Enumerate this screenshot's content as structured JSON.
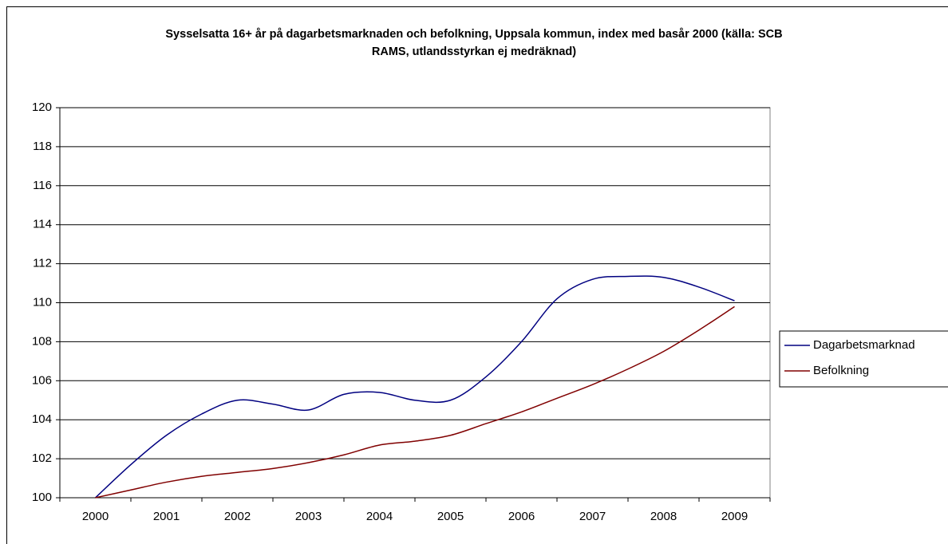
{
  "chart_data": {
    "type": "line",
    "title": "Sysselsatta 16+ år på dagarbetsmarknaden och befolkning, Uppsala kommun, index med basår 2000 (källa: SCB RAMS, utlandsstyrkan ej medräknad)",
    "categories": [
      "2000",
      null,
      "2001",
      null,
      "2002",
      null,
      "2003",
      null,
      "2004",
      null,
      "2005",
      null,
      "2006",
      null,
      "2007",
      null,
      "2008",
      null,
      "2009"
    ],
    "series": [
      {
        "name": "Dagarbetsmarknad",
        "color": "#000080",
        "values": [
          100,
          101.7,
          103.2,
          104.3,
          105.0,
          104.8,
          104.5,
          105.3,
          105.4,
          105.0,
          105.0,
          106.2,
          108.0,
          110.2,
          111.2,
          111.35,
          111.3,
          110.8,
          110.1
        ]
      },
      {
        "name": "Befolkning",
        "color": "#800000",
        "values": [
          100,
          100.4,
          100.8,
          101.1,
          101.3,
          101.5,
          101.8,
          102.2,
          102.7,
          102.9,
          103.2,
          103.8,
          104.4,
          105.1,
          105.8,
          106.6,
          107.5,
          108.6,
          109.8
        ]
      }
    ],
    "ylim": [
      100,
      120
    ],
    "yticks": [
      100,
      102,
      104,
      106,
      108,
      110,
      112,
      114,
      116,
      118,
      120
    ],
    "grid": true,
    "legend": "right"
  }
}
